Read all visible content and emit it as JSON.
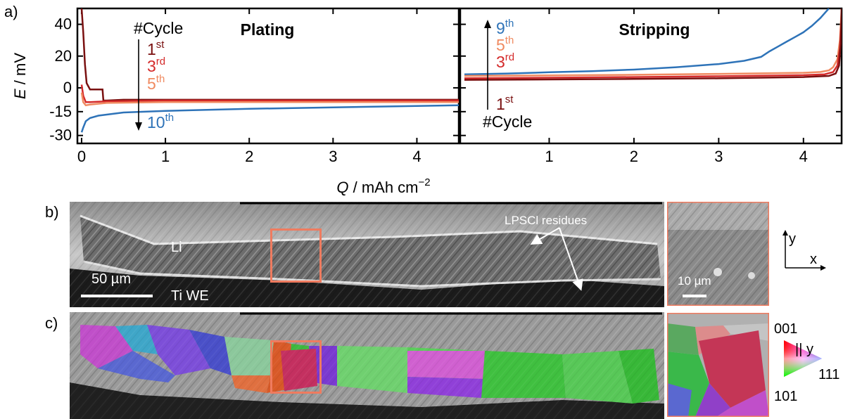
{
  "panel_labels": {
    "a": "a)",
    "b": "b)",
    "c": "c)"
  },
  "chart_data": {
    "type": "line",
    "ylabel_italic": "E",
    "ylabel_unit": " / mV",
    "xlabel_italic": "Q",
    "xlabel_unit": " / mAh cm",
    "xlabel_sup": "−2",
    "ylim": [
      -35,
      50
    ],
    "y_ticks": [
      "40",
      "20",
      "0",
      "-15",
      "-30"
    ],
    "y_tick_values": [
      40,
      20,
      0,
      -15,
      -30
    ],
    "panels": [
      {
        "title": "Plating",
        "xlim": [
          -0.05,
          4.5
        ],
        "x_ticks": [
          "0",
          "1",
          "2",
          "3",
          "4"
        ],
        "x_tick_values": [
          0,
          1,
          2,
          3,
          4
        ],
        "annotation": "#Cycle",
        "arrow_direction": "down",
        "cycle_labels": [
          {
            "num": "1",
            "sup": "st",
            "color": "#7a1010"
          },
          {
            "num": "3",
            "sup": "rd",
            "color": "#d42a2a"
          },
          {
            "num": "5",
            "sup": "th",
            "color": "#f08a60"
          },
          {
            "num": "10",
            "sup": "th",
            "color": "#2e73b8"
          }
        ],
        "series": [
          {
            "color": "#7a1010",
            "x": [
              0,
              0.02,
              0.04,
              0.06,
              0.1,
              0.15,
              0.2,
              0.25,
              0.26,
              0.3,
              0.5,
              1,
              2,
              3,
              4,
              4.5
            ],
            "y": [
              50,
              35,
              15,
              3,
              -1,
              -1,
              -1,
              -1,
              -8,
              -8,
              -7.5,
              -7.5,
              -7.5,
              -7.5,
              -7.5,
              -7.5
            ]
          },
          {
            "color": "#d42a2a",
            "x": [
              0,
              0.02,
              0.05,
              0.1,
              0.3,
              1,
              2,
              3,
              4,
              4.5
            ],
            "y": [
              2,
              -5,
              -9,
              -9,
              -8.5,
              -8,
              -8,
              -8,
              -8,
              -8
            ]
          },
          {
            "color": "#f08a60",
            "x": [
              0,
              0.02,
              0.05,
              0.1,
              0.3,
              1,
              2,
              3,
              4,
              4.5
            ],
            "y": [
              -3,
              -9,
              -11,
              -10.5,
              -9.5,
              -9,
              -9,
              -9,
              -9,
              -9
            ]
          },
          {
            "color": "#2e73b8",
            "x": [
              0,
              0.02,
              0.05,
              0.1,
              0.2,
              0.5,
              1,
              2,
              3,
              4,
              4.5
            ],
            "y": [
              -28,
              -25,
              -21,
              -19,
              -17.5,
              -15.5,
              -14.5,
              -13.2,
              -12.3,
              -11.4,
              -11
            ]
          }
        ]
      },
      {
        "title": "Stripping",
        "xlim": [
          -0.05,
          4.45
        ],
        "x_ticks": [
          "1",
          "2",
          "3",
          "4"
        ],
        "x_tick_values": [
          1,
          2,
          3,
          4
        ],
        "annotation": "#Cycle",
        "arrow_direction": "up",
        "cycle_labels": [
          {
            "num": "9",
            "sup": "th",
            "color": "#2e73b8"
          },
          {
            "num": "5",
            "sup": "th",
            "color": "#f08a60"
          },
          {
            "num": "3",
            "sup": "rd",
            "color": "#d42a2a"
          },
          {
            "num": "1",
            "sup": "st",
            "color": "#7a1010"
          }
        ],
        "series": [
          {
            "color": "#2e73b8",
            "x": [
              0,
              0.5,
              1,
              1.5,
              2,
              2.5,
              3,
              3.3,
              3.5,
              3.6,
              3.7,
              3.8,
              3.9,
              4,
              4.1,
              4.2,
              4.3
            ],
            "y": [
              8.5,
              9,
              9.8,
              10.5,
              11.5,
              13,
              15,
              17,
              19.5,
              23,
              26,
              29,
              32,
              35,
              39,
              44,
              50
            ]
          },
          {
            "color": "#f08a60",
            "x": [
              0,
              1,
              2,
              3,
              4,
              4.2,
              4.3,
              4.35,
              4.4,
              4.43,
              4.45
            ],
            "y": [
              7.5,
              7.8,
              8.2,
              8.8,
              9.5,
              10,
              11,
              13,
              18,
              30,
              50
            ]
          },
          {
            "color": "#d42a2a",
            "x": [
              0,
              1,
              2,
              3,
              4,
              4.25,
              4.35,
              4.4,
              4.43,
              4.45
            ],
            "y": [
              6,
              6.4,
              6.8,
              7.3,
              8,
              8.5,
              10,
              14,
              25,
              45
            ]
          },
          {
            "color": "#7a1010",
            "x": [
              0,
              1,
              2,
              3,
              4,
              4.3,
              4.38,
              4.42,
              4.44,
              4.45
            ],
            "y": [
              5,
              5.3,
              5.6,
              6,
              6.8,
              7.5,
              9,
              14,
              28,
              50
            ]
          }
        ]
      }
    ]
  },
  "sem_panel": {
    "label_li": "Li",
    "label_ti": "Ti WE",
    "scale_main": "50 µm",
    "scale_inset": "10 µm",
    "residue_label": "LPSCl residues",
    "axis_y": "y",
    "axis_x": "x",
    "highlight_color": "#ef7b5f"
  },
  "ebsd_panel": {
    "key_top": "001",
    "key_direction": "|| y",
    "key_right": "111",
    "key_bottom": "101"
  }
}
